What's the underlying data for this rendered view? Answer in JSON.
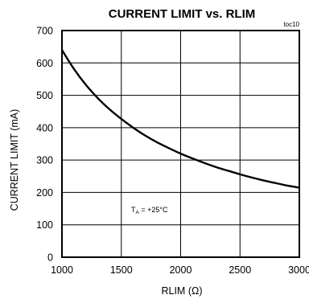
{
  "chart_data": {
    "type": "line",
    "title": "CURRENT LIMIT vs. RLIM",
    "figure_tag": "toc10",
    "xlabel": "RLIM (Ω)",
    "ylabel": "CURRENT LIMIT (mA)",
    "xlim": [
      1000,
      3000
    ],
    "ylim": [
      0,
      700
    ],
    "x_ticks": [
      "1000",
      "1500",
      "2000",
      "2500",
      "3000"
    ],
    "y_ticks": [
      "0",
      "100",
      "200",
      "300",
      "400",
      "500",
      "600",
      "700"
    ],
    "grid": true,
    "annotation": {
      "main": "T",
      "sub": "A",
      "rest": " = +25°C"
    },
    "series": [
      {
        "x": [
          1000,
          1100,
          1200,
          1300,
          1400,
          1500,
          1600,
          1700,
          1800,
          1900,
          2000,
          2100,
          2200,
          2300,
          2400,
          2500,
          2600,
          2700,
          2800,
          2900,
          3000
        ],
        "values": [
          640,
          582,
          533,
          492,
          457,
          427,
          400,
          376,
          355,
          337,
          320,
          305,
          291,
          278,
          267,
          256,
          246,
          237,
          229,
          221,
          215
        ]
      }
    ]
  }
}
